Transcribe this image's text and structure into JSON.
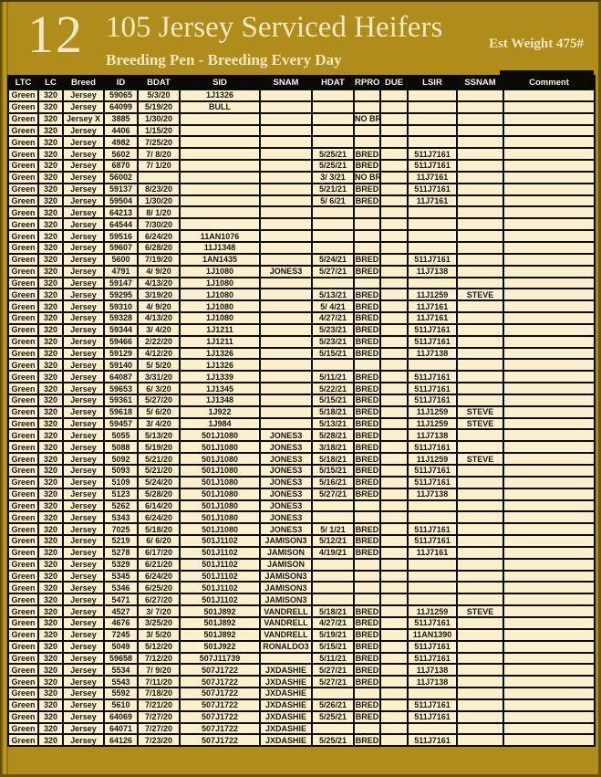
{
  "page": {
    "number": "12",
    "title": "105 Jersey Serviced Heifers",
    "subtitle": "Breeding Pen - Breeding Every Day",
    "est_weight": "Est Weight 475#"
  },
  "colors": {
    "background_gold": "#AF8C1B",
    "cell_cream": "#FBF0CE",
    "grid_black": "#0A0A00",
    "title_text": "#F3E9C1"
  },
  "table": {
    "columns": [
      "LTC",
      "LC",
      "Breed",
      "ID",
      "BDAT",
      "SID",
      "SNAM",
      "HDAT",
      "RPRO",
      "DUE",
      "LSIR",
      "SSNAM",
      "Comment"
    ],
    "rows": [
      [
        "Green",
        "320",
        "Jersey",
        "59065",
        "5/3/20",
        "1J1326",
        "",
        "",
        "",
        "",
        "",
        "",
        ""
      ],
      [
        "Green",
        "320",
        "Jersey",
        "64099",
        "5/19/20",
        "BULL",
        "",
        "",
        "",
        "",
        "",
        "",
        ""
      ],
      [
        "Green",
        "320",
        "Jersey X",
        "3885",
        "1/30/20",
        "",
        "",
        "",
        "NO BR",
        "",
        "",
        "",
        ""
      ],
      [
        "Green",
        "320",
        "Jersey",
        "4406",
        "1/15/20",
        "",
        "",
        "",
        "",
        "",
        "",
        "",
        ""
      ],
      [
        "Green",
        "320",
        "Jersey",
        "4982",
        "7/25/20",
        "",
        "",
        "",
        "",
        "",
        "",
        "",
        ""
      ],
      [
        "Green",
        "320",
        "Jersey",
        "5602",
        "7/ 8/20",
        "",
        "",
        "5/25/21",
        "BRED",
        "",
        "511J7161",
        "",
        ""
      ],
      [
        "Green",
        "320",
        "Jersey",
        "6870",
        "7/ 1/20",
        "",
        "",
        "5/25/21",
        "BRED",
        "",
        "511J7161",
        "",
        ""
      ],
      [
        "Green",
        "320",
        "Jersey",
        "56002",
        "",
        "",
        "",
        "3/ 3/21",
        "NO BR",
        "",
        "11J7161",
        "",
        ""
      ],
      [
        "Green",
        "320",
        "Jersey",
        "59137",
        "8/23/20",
        "",
        "",
        "5/21/21",
        "BRED",
        "",
        "511J7161",
        "",
        ""
      ],
      [
        "Green",
        "320",
        "Jersey",
        "59504",
        "1/30/20",
        "",
        "",
        "5/ 6/21",
        "BRED",
        "",
        "11J7161",
        "",
        ""
      ],
      [
        "Green",
        "320",
        "Jersey",
        "64213",
        "8/ 1/20",
        "",
        "",
        "",
        "",
        "",
        "",
        "",
        ""
      ],
      [
        "Green",
        "320",
        "Jersey",
        "64544",
        "7/30/20",
        "",
        "",
        "",
        "",
        "",
        "",
        "",
        ""
      ],
      [
        "Green",
        "320",
        "Jersey",
        "59516",
        "6/24/20",
        "11AN1076",
        "",
        "",
        "",
        "",
        "",
        "",
        ""
      ],
      [
        "Green",
        "320",
        "Jersey",
        "59607",
        "6/28/20",
        "11J1348",
        "",
        "",
        "",
        "",
        "",
        "",
        ""
      ],
      [
        "Green",
        "320",
        "Jersey",
        "5600",
        "7/19/20",
        "1AN1435",
        "",
        "5/24/21",
        "BRED",
        "",
        "511J7161",
        "",
        ""
      ],
      [
        "Green",
        "320",
        "Jersey",
        "4791",
        "4/ 9/20",
        "1J1080",
        "JONES3",
        "5/27/21",
        "BRED",
        "",
        "11J7138",
        "",
        ""
      ],
      [
        "Green",
        "320",
        "Jersey",
        "59147",
        "4/13/20",
        "1J1080",
        "",
        "",
        "",
        "",
        "",
        "",
        ""
      ],
      [
        "Green",
        "320",
        "Jersey",
        "59295",
        "3/19/20",
        "1J1080",
        "",
        "5/13/21",
        "BRED",
        "",
        "11J1259",
        "STEVE",
        ""
      ],
      [
        "Green",
        "320",
        "Jersey",
        "59310",
        "4/ 9/20",
        "1J1080",
        "",
        "5/ 4/21",
        "BRED",
        "",
        "11J7161",
        "",
        ""
      ],
      [
        "Green",
        "320",
        "Jersey",
        "59328",
        "4/13/20",
        "1J1080",
        "",
        "4/27/21",
        "BRED",
        "",
        "11J7161",
        "",
        ""
      ],
      [
        "Green",
        "320",
        "Jersey",
        "59344",
        "3/ 4/20",
        "1J1211",
        "",
        "5/23/21",
        "BRED",
        "",
        "511J7161",
        "",
        ""
      ],
      [
        "Green",
        "320",
        "Jersey",
        "59466",
        "2/22/20",
        "1J1211",
        "",
        "5/23/21",
        "BRED",
        "",
        "511J7161",
        "",
        ""
      ],
      [
        "Green",
        "320",
        "Jersey",
        "59129",
        "4/12/20",
        "1J1326",
        "",
        "5/15/21",
        "BRED",
        "",
        "11J7138",
        "",
        ""
      ],
      [
        "Green",
        "320",
        "Jersey",
        "59140",
        "5/ 5/20",
        "1J1326",
        "",
        "",
        "",
        "",
        "",
        "",
        ""
      ],
      [
        "Green",
        "320",
        "Jersey",
        "64087",
        "3/31/20",
        "1J1339",
        "",
        "5/11/21",
        "BRED",
        "",
        "511J7161",
        "",
        ""
      ],
      [
        "Green",
        "320",
        "Jersey",
        "59653",
        "6/ 3/20",
        "1J1345",
        "",
        "5/22/21",
        "BRED",
        "",
        "511J7161",
        "",
        ""
      ],
      [
        "Green",
        "320",
        "Jersey",
        "59361",
        "5/27/20",
        "1J1348",
        "",
        "5/15/21",
        "BRED",
        "",
        "511J7161",
        "",
        ""
      ],
      [
        "Green",
        "320",
        "Jersey",
        "59618",
        "5/ 6/20",
        "1J922",
        "",
        "5/18/21",
        "BRED",
        "",
        "11J1259",
        "STEVE",
        ""
      ],
      [
        "Green",
        "320",
        "Jersey",
        "59457",
        "3/ 4/20",
        "1J984",
        "",
        "5/13/21",
        "BRED",
        "",
        "11J1259",
        "STEVE",
        ""
      ],
      [
        "Green",
        "320",
        "Jersey",
        "5055",
        "5/13/20",
        "501J1080",
        "JONES3",
        "5/28/21",
        "BRED",
        "",
        "11J7138",
        "",
        ""
      ],
      [
        "Green",
        "320",
        "Jersey",
        "5088",
        "5/19/20",
        "501J1080",
        "JONES3",
        "3/18/21",
        "BRED",
        "",
        "511J7161",
        "",
        ""
      ],
      [
        "Green",
        "320",
        "Jersey",
        "5092",
        "5/21/20",
        "501J1080",
        "JONES3",
        "5/18/21",
        "BRED",
        "",
        "11J1259",
        "STEVE",
        ""
      ],
      [
        "Green",
        "320",
        "Jersey",
        "5093",
        "5/21/20",
        "501J1080",
        "JONES3",
        "5/15/21",
        "BRED",
        "",
        "511J7161",
        "",
        ""
      ],
      [
        "Green",
        "320",
        "Jersey",
        "5109",
        "5/24/20",
        "501J1080",
        "JONES3",
        "5/16/21",
        "BRED",
        "",
        "511J7161",
        "",
        ""
      ],
      [
        "Green",
        "320",
        "Jersey",
        "5123",
        "5/28/20",
        "501J1080",
        "JONES3",
        "5/27/21",
        "BRED",
        "",
        "11J7138",
        "",
        ""
      ],
      [
        "Green",
        "320",
        "Jersey",
        "5262",
        "6/14/20",
        "501J1080",
        "JONES3",
        "",
        "",
        "",
        "",
        "",
        ""
      ],
      [
        "Green",
        "320",
        "Jersey",
        "5343",
        "6/24/20",
        "501J1080",
        "JONES3",
        "",
        "",
        "",
        "",
        "",
        ""
      ],
      [
        "Green",
        "320",
        "Jersey",
        "7025",
        "5/18/20",
        "501J1080",
        "JONES3",
        "5/ 1/21",
        "BRED",
        "",
        "511J7161",
        "",
        ""
      ],
      [
        "Green",
        "320",
        "Jersey",
        "5219",
        "6/ 6/20",
        "501J1102",
        "JAMISON3",
        "5/12/21",
        "BRED",
        "",
        "511J7161",
        "",
        ""
      ],
      [
        "Green",
        "320",
        "Jersey",
        "5278",
        "6/17/20",
        "501J1102",
        "JAMISON",
        "4/19/21",
        "BRED",
        "",
        "11J7161",
        "",
        ""
      ],
      [
        "Green",
        "320",
        "Jersey",
        "5329",
        "6/21/20",
        "501J1102",
        "JAMISON",
        "",
        "",
        "",
        "",
        "",
        ""
      ],
      [
        "Green",
        "320",
        "Jersey",
        "5345",
        "6/24/20",
        "501J1102",
        "JAMISON3",
        "",
        "",
        "",
        "",
        "",
        ""
      ],
      [
        "Green",
        "320",
        "Jersey",
        "5346",
        "6/25/20",
        "501J1102",
        "JAMISON3",
        "",
        "",
        "",
        "",
        "",
        ""
      ],
      [
        "Green",
        "320",
        "Jersey",
        "5471",
        "6/27/20",
        "501J1102",
        "JAMISON3",
        "",
        "",
        "",
        "",
        "",
        ""
      ],
      [
        "Green",
        "320",
        "Jersey",
        "4527",
        "3/ 7/20",
        "501J892",
        "VANDRELL",
        "5/18/21",
        "BRED",
        "",
        "11J1259",
        "STEVE",
        ""
      ],
      [
        "Green",
        "320",
        "Jersey",
        "4676",
        "3/25/20",
        "501J892",
        "VANDRELL",
        "4/27/21",
        "BRED",
        "",
        "511J7161",
        "",
        ""
      ],
      [
        "Green",
        "320",
        "Jersey",
        "7245",
        "3/ 5/20",
        "501J892",
        "VANDRELL",
        "5/19/21",
        "BRED",
        "",
        "11AN1390",
        "",
        ""
      ],
      [
        "Green",
        "320",
        "Jersey",
        "5049",
        "5/12/20",
        "501J922",
        "RONALDO3",
        "5/15/21",
        "BRED",
        "",
        "511J7161",
        "",
        ""
      ],
      [
        "Green",
        "320",
        "Jersey",
        "59658",
        "7/12/20",
        "507J11739",
        "",
        "5/11/21",
        "BRED",
        "",
        "511J7161",
        "",
        ""
      ],
      [
        "Green",
        "320",
        "Jersey",
        "5534",
        "7/ 9/20",
        "507J1722",
        "JXDASHIE",
        "5/27/21",
        "BRED",
        "",
        "11J7138",
        "",
        ""
      ],
      [
        "Green",
        "320",
        "Jersey",
        "5543",
        "7/11/20",
        "507J1722",
        "JXDASHIE",
        "5/27/21",
        "BRED",
        "",
        "11J7138",
        "",
        ""
      ],
      [
        "Green",
        "320",
        "Jersey",
        "5592",
        "7/18/20",
        "507J1722",
        "JXDASHIE",
        "",
        "",
        "",
        "",
        "",
        ""
      ],
      [
        "Green",
        "320",
        "Jersey",
        "5610",
        "7/21/20",
        "507J1722",
        "JXDASHIE",
        "5/26/21",
        "BRED",
        "",
        "511J7161",
        "",
        ""
      ],
      [
        "Green",
        "320",
        "Jersey",
        "64069",
        "7/27/20",
        "507J1722",
        "JXDASHIE",
        "5/25/21",
        "BRED",
        "",
        "511J7161",
        "",
        ""
      ],
      [
        "Green",
        "320",
        "Jersey",
        "64071",
        "7/27/20",
        "507J1722",
        "JXDASHIE",
        "",
        "",
        "",
        "",
        "",
        ""
      ],
      [
        "Green",
        "320",
        "Jersey",
        "64126",
        "7/23/20",
        "507J1722",
        "JXDASHIE",
        "5/25/21",
        "BRED",
        "",
        "511J7161",
        "",
        ""
      ]
    ]
  }
}
